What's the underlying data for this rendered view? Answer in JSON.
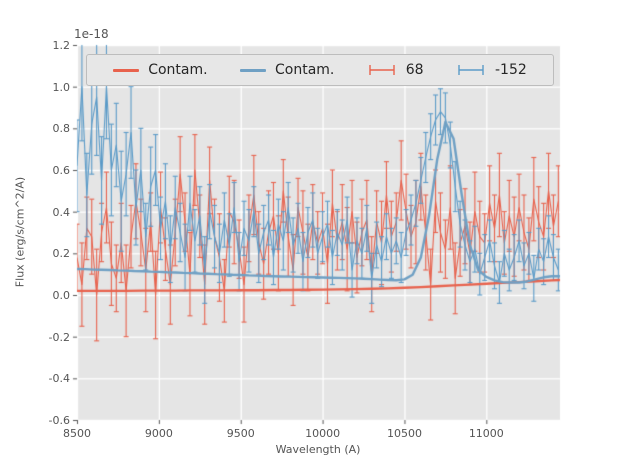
{
  "figure": {
    "background": "#ffffff",
    "axes_background": "#e5e5e5",
    "grid_color": "#ffffff",
    "tick_color": "#555555",
    "text_color": "#555555"
  },
  "chart_data": {
    "type": "line",
    "title": "",
    "xlabel": "Wavelength (A)",
    "ylabel": "Flux (erg/s/cm^2/A)",
    "offset_label": "1e-18",
    "xlim": [
      8500,
      11450
    ],
    "ylim": [
      -0.6,
      1.2
    ],
    "grid": true,
    "legend_position": "upper center",
    "xticks": [
      8500,
      9000,
      9500,
      10000,
      10500,
      11000
    ],
    "xtick_labels": [
      "8500",
      "9000",
      "9500",
      "10000",
      "10500",
      "11000"
    ],
    "yticks": [
      -0.6,
      -0.4,
      -0.2,
      0.0,
      0.2,
      0.4,
      0.6,
      0.8,
      1.0,
      1.2
    ],
    "ytick_labels": [
      "-0.6",
      "-0.4",
      "-0.2",
      "0.0",
      "0.2",
      "0.4",
      "0.6",
      "0.8",
      "1.0",
      "1.2"
    ],
    "legend": {
      "entries": [
        {
          "label": "Contam.",
          "color": "#e8624d",
          "glyph": "line"
        },
        {
          "label": "Contam.",
          "color": "#6fa0c4",
          "glyph": "line"
        },
        {
          "label": "68",
          "color": "#e8624d",
          "glyph": "errorbar"
        },
        {
          "label": "-152",
          "color": "#5b9bc8",
          "glyph": "errorbar"
        }
      ]
    },
    "series": [
      {
        "name": "Contam. red model",
        "style": "line",
        "color": "#e8624d",
        "linewidth": 2.4,
        "x": [
          8500,
          8600,
          8700,
          8800,
          8900,
          9000,
          9100,
          9200,
          9300,
          9400,
          9500,
          9600,
          9700,
          9800,
          9900,
          10000,
          10100,
          10200,
          10300,
          10400,
          10500,
          10600,
          10700,
          10800,
          10900,
          11000,
          11100,
          11200,
          11300,
          11400,
          11450
        ],
        "y": [
          0.02,
          0.02,
          0.02,
          0.02,
          0.021,
          0.021,
          0.021,
          0.022,
          0.022,
          0.022,
          0.023,
          0.023,
          0.024,
          0.024,
          0.025,
          0.026,
          0.027,
          0.028,
          0.03,
          0.032,
          0.035,
          0.038,
          0.042,
          0.046,
          0.05,
          0.054,
          0.058,
          0.062,
          0.066,
          0.07,
          0.072
        ]
      },
      {
        "name": "Contam. blue model",
        "style": "line",
        "color": "#6fa0c4",
        "linewidth": 2.4,
        "x": [
          8500,
          8550,
          8600,
          8650,
          8700,
          8750,
          8800,
          8850,
          8900,
          8950,
          9000,
          9050,
          9100,
          9150,
          9200,
          9250,
          9300,
          9350,
          9400,
          9450,
          9500,
          9550,
          9600,
          9650,
          9700,
          9750,
          9800,
          9850,
          9900,
          9950,
          10000,
          10050,
          10100,
          10150,
          10200,
          10250,
          10300,
          10350,
          10400,
          10450,
          10500,
          10550,
          10600,
          10650,
          10700,
          10750,
          10800,
          10850,
          10900,
          10950,
          11000,
          11050,
          11100,
          11150,
          11200,
          11250,
          11300,
          11350,
          11400,
          11450
        ],
        "y": [
          0.125,
          0.124,
          0.122,
          0.121,
          0.12,
          0.118,
          0.117,
          0.115,
          0.114,
          0.112,
          0.111,
          0.109,
          0.108,
          0.106,
          0.105,
          0.103,
          0.102,
          0.1,
          0.099,
          0.097,
          0.096,
          0.094,
          0.093,
          0.091,
          0.09,
          0.089,
          0.088,
          0.087,
          0.086,
          0.085,
          0.084,
          0.083,
          0.082,
          0.081,
          0.08,
          0.078,
          0.076,
          0.074,
          0.072,
          0.071,
          0.075,
          0.097,
          0.18,
          0.38,
          0.65,
          0.83,
          0.75,
          0.48,
          0.24,
          0.12,
          0.087,
          0.07,
          0.062,
          0.06,
          0.06,
          0.065,
          0.075,
          0.085,
          0.09,
          0.09
        ]
      },
      {
        "name": "68",
        "style": "errorbar",
        "color": "#e8624d",
        "linewidth": 1.1,
        "x": [
          8500,
          8530,
          8560,
          8590,
          8620,
          8650,
          8680,
          8710,
          8740,
          8770,
          8800,
          8830,
          8860,
          8890,
          8920,
          8950,
          8980,
          9010,
          9040,
          9070,
          9100,
          9130,
          9160,
          9190,
          9220,
          9250,
          9280,
          9310,
          9340,
          9370,
          9400,
          9430,
          9460,
          9490,
          9520,
          9550,
          9580,
          9610,
          9640,
          9670,
          9700,
          9730,
          9760,
          9790,
          9820,
          9850,
          9880,
          9910,
          9940,
          9970,
          10000,
          10030,
          10060,
          10090,
          10120,
          10150,
          10180,
          10210,
          10240,
          10270,
          10300,
          10330,
          10360,
          10390,
          10420,
          10450,
          10480,
          10510,
          10540,
          10570,
          10600,
          10630,
          10660,
          10690,
          10720,
          10750,
          10780,
          10810,
          10840,
          10870,
          10900,
          10930,
          10960,
          10990,
          11020,
          11050,
          11080,
          11110,
          11140,
          11170,
          11200,
          11230,
          11260,
          11290,
          11320,
          11350,
          11380,
          11410,
          11440
        ],
        "y": [
          0.18,
          0.05,
          0.32,
          0.28,
          0.0,
          0.3,
          0.42,
          0.15,
          0.08,
          0.25,
          0.02,
          0.28,
          0.45,
          0.3,
          0.12,
          0.35,
          0.0,
          0.42,
          0.22,
          0.05,
          0.3,
          0.58,
          0.35,
          0.1,
          0.6,
          0.33,
          0.05,
          0.55,
          0.28,
          0.18,
          0.02,
          0.4,
          0.35,
          0.22,
          0.05,
          0.32,
          0.48,
          0.25,
          0.15,
          0.3,
          0.38,
          0.2,
          0.5,
          0.28,
          0.12,
          0.42,
          0.3,
          0.18,
          0.35,
          0.25,
          0.32,
          0.15,
          0.44,
          0.26,
          0.35,
          0.22,
          0.4,
          0.18,
          0.3,
          0.36,
          0.1,
          0.35,
          0.25,
          0.48,
          0.28,
          0.35,
          0.55,
          0.4,
          0.28,
          0.35,
          0.52,
          0.3,
          0.05,
          0.45,
          0.3,
          0.22,
          0.42,
          0.08,
          0.25,
          0.33,
          0.2,
          0.4,
          0.28,
          0.25,
          0.44,
          0.32,
          0.48,
          0.25,
          0.38,
          0.28,
          0.42,
          0.3,
          0.22,
          0.46,
          0.35,
          0.28,
          0.5,
          0.33,
          0.45
        ],
        "yerr": [
          0.16,
          0.2,
          0.15,
          0.18,
          0.22,
          0.14,
          0.17,
          0.2,
          0.16,
          0.19,
          0.22,
          0.15,
          0.18,
          0.16,
          0.2,
          0.14,
          0.21,
          0.17,
          0.15,
          0.19,
          0.16,
          0.18,
          0.14,
          0.2,
          0.17,
          0.15,
          0.19,
          0.16,
          0.18,
          0.21,
          0.15,
          0.17,
          0.2,
          0.14,
          0.18,
          0.16,
          0.19,
          0.15,
          0.17,
          0.2,
          0.16,
          0.18,
          0.15,
          0.19,
          0.17,
          0.14,
          0.2,
          0.16,
          0.18,
          0.15,
          0.17,
          0.19,
          0.16,
          0.14,
          0.18,
          0.2,
          0.15,
          0.17,
          0.16,
          0.19,
          0.18,
          0.15,
          0.2,
          0.16,
          0.17,
          0.14,
          0.19,
          0.18,
          0.15,
          0.2,
          0.16,
          0.18,
          0.17,
          0.15,
          0.19,
          0.14,
          0.2,
          0.17,
          0.16,
          0.18,
          0.15,
          0.19,
          0.17,
          0.14,
          0.18,
          0.16,
          0.2,
          0.15,
          0.17,
          0.19,
          0.16,
          0.18,
          0.15,
          0.2,
          0.17,
          0.16,
          0.18,
          0.15,
          0.17
        ]
      },
      {
        "name": "-152",
        "style": "errorbar",
        "color": "#5b9bc8",
        "linewidth": 1.1,
        "x": [
          8500,
          8530,
          8560,
          8590,
          8620,
          8650,
          8680,
          8710,
          8740,
          8770,
          8800,
          8830,
          8860,
          8890,
          8920,
          8950,
          8980,
          9010,
          9040,
          9070,
          9100,
          9130,
          9160,
          9190,
          9220,
          9250,
          9280,
          9310,
          9340,
          9370,
          9400,
          9430,
          9460,
          9490,
          9520,
          9550,
          9580,
          9610,
          9640,
          9670,
          9700,
          9730,
          9760,
          9790,
          9820,
          9850,
          9880,
          9910,
          9940,
          9970,
          10000,
          10030,
          10060,
          10090,
          10120,
          10150,
          10180,
          10210,
          10240,
          10270,
          10300,
          10330,
          10360,
          10390,
          10420,
          10450,
          10480,
          10510,
          10540,
          10570,
          10600,
          10630,
          10660,
          10690,
          10720,
          10750,
          10780,
          10810,
          10840,
          10870,
          10900,
          10930,
          10960,
          10990,
          11020,
          11050,
          11080,
          11110,
          11140,
          11170,
          11200,
          11230,
          11260,
          11290,
          11320,
          11350,
          11380,
          11410,
          11440
        ],
        "y": [
          0.62,
          1.0,
          0.48,
          0.82,
          0.95,
          0.55,
          1.0,
          0.6,
          0.72,
          0.45,
          0.58,
          0.78,
          0.42,
          0.6,
          0.28,
          0.52,
          0.6,
          0.32,
          0.45,
          0.22,
          0.42,
          0.3,
          0.18,
          0.44,
          0.26,
          0.38,
          0.12,
          0.4,
          0.28,
          0.2,
          0.36,
          0.24,
          0.42,
          0.16,
          0.32,
          0.26,
          0.4,
          0.2,
          0.3,
          0.36,
          0.18,
          0.34,
          0.26,
          0.42,
          0.24,
          0.32,
          0.16,
          0.3,
          0.36,
          0.2,
          0.28,
          0.34,
          0.18,
          0.3,
          0.24,
          0.36,
          0.12,
          0.26,
          0.2,
          0.32,
          0.08,
          0.24,
          0.16,
          0.28,
          0.2,
          0.26,
          0.18,
          0.3,
          0.36,
          0.44,
          0.55,
          0.66,
          0.76,
          0.84,
          0.88,
          0.85,
          0.72,
          0.52,
          0.34,
          0.24,
          0.16,
          0.22,
          0.1,
          0.18,
          0.26,
          0.14,
          0.06,
          0.2,
          0.12,
          0.18,
          0.26,
          0.14,
          0.2,
          0.08,
          0.22,
          0.16,
          0.28,
          0.18,
          0.12
        ],
        "yerr": [
          0.22,
          0.26,
          0.2,
          0.24,
          0.28,
          0.21,
          0.25,
          0.22,
          0.2,
          0.24,
          0.2,
          0.22,
          0.18,
          0.2,
          0.16,
          0.19,
          0.17,
          0.15,
          0.18,
          0.16,
          0.15,
          0.14,
          0.16,
          0.13,
          0.15,
          0.14,
          0.16,
          0.13,
          0.15,
          0.14,
          0.13,
          0.15,
          0.12,
          0.14,
          0.13,
          0.15,
          0.12,
          0.14,
          0.13,
          0.12,
          0.13,
          0.12,
          0.14,
          0.12,
          0.13,
          0.12,
          0.14,
          0.12,
          0.13,
          0.12,
          0.12,
          0.11,
          0.13,
          0.11,
          0.12,
          0.11,
          0.13,
          0.11,
          0.12,
          0.11,
          0.12,
          0.11,
          0.12,
          0.11,
          0.12,
          0.11,
          0.12,
          0.11,
          0.12,
          0.11,
          0.11,
          0.12,
          0.11,
          0.12,
          0.11,
          0.12,
          0.11,
          0.12,
          0.11,
          0.12,
          0.1,
          0.11,
          0.1,
          0.11,
          0.1,
          0.11,
          0.1,
          0.11,
          0.1,
          0.11,
          0.1,
          0.11,
          0.1,
          0.11,
          0.1,
          0.11,
          0.1,
          0.11,
          0.1
        ]
      }
    ]
  }
}
